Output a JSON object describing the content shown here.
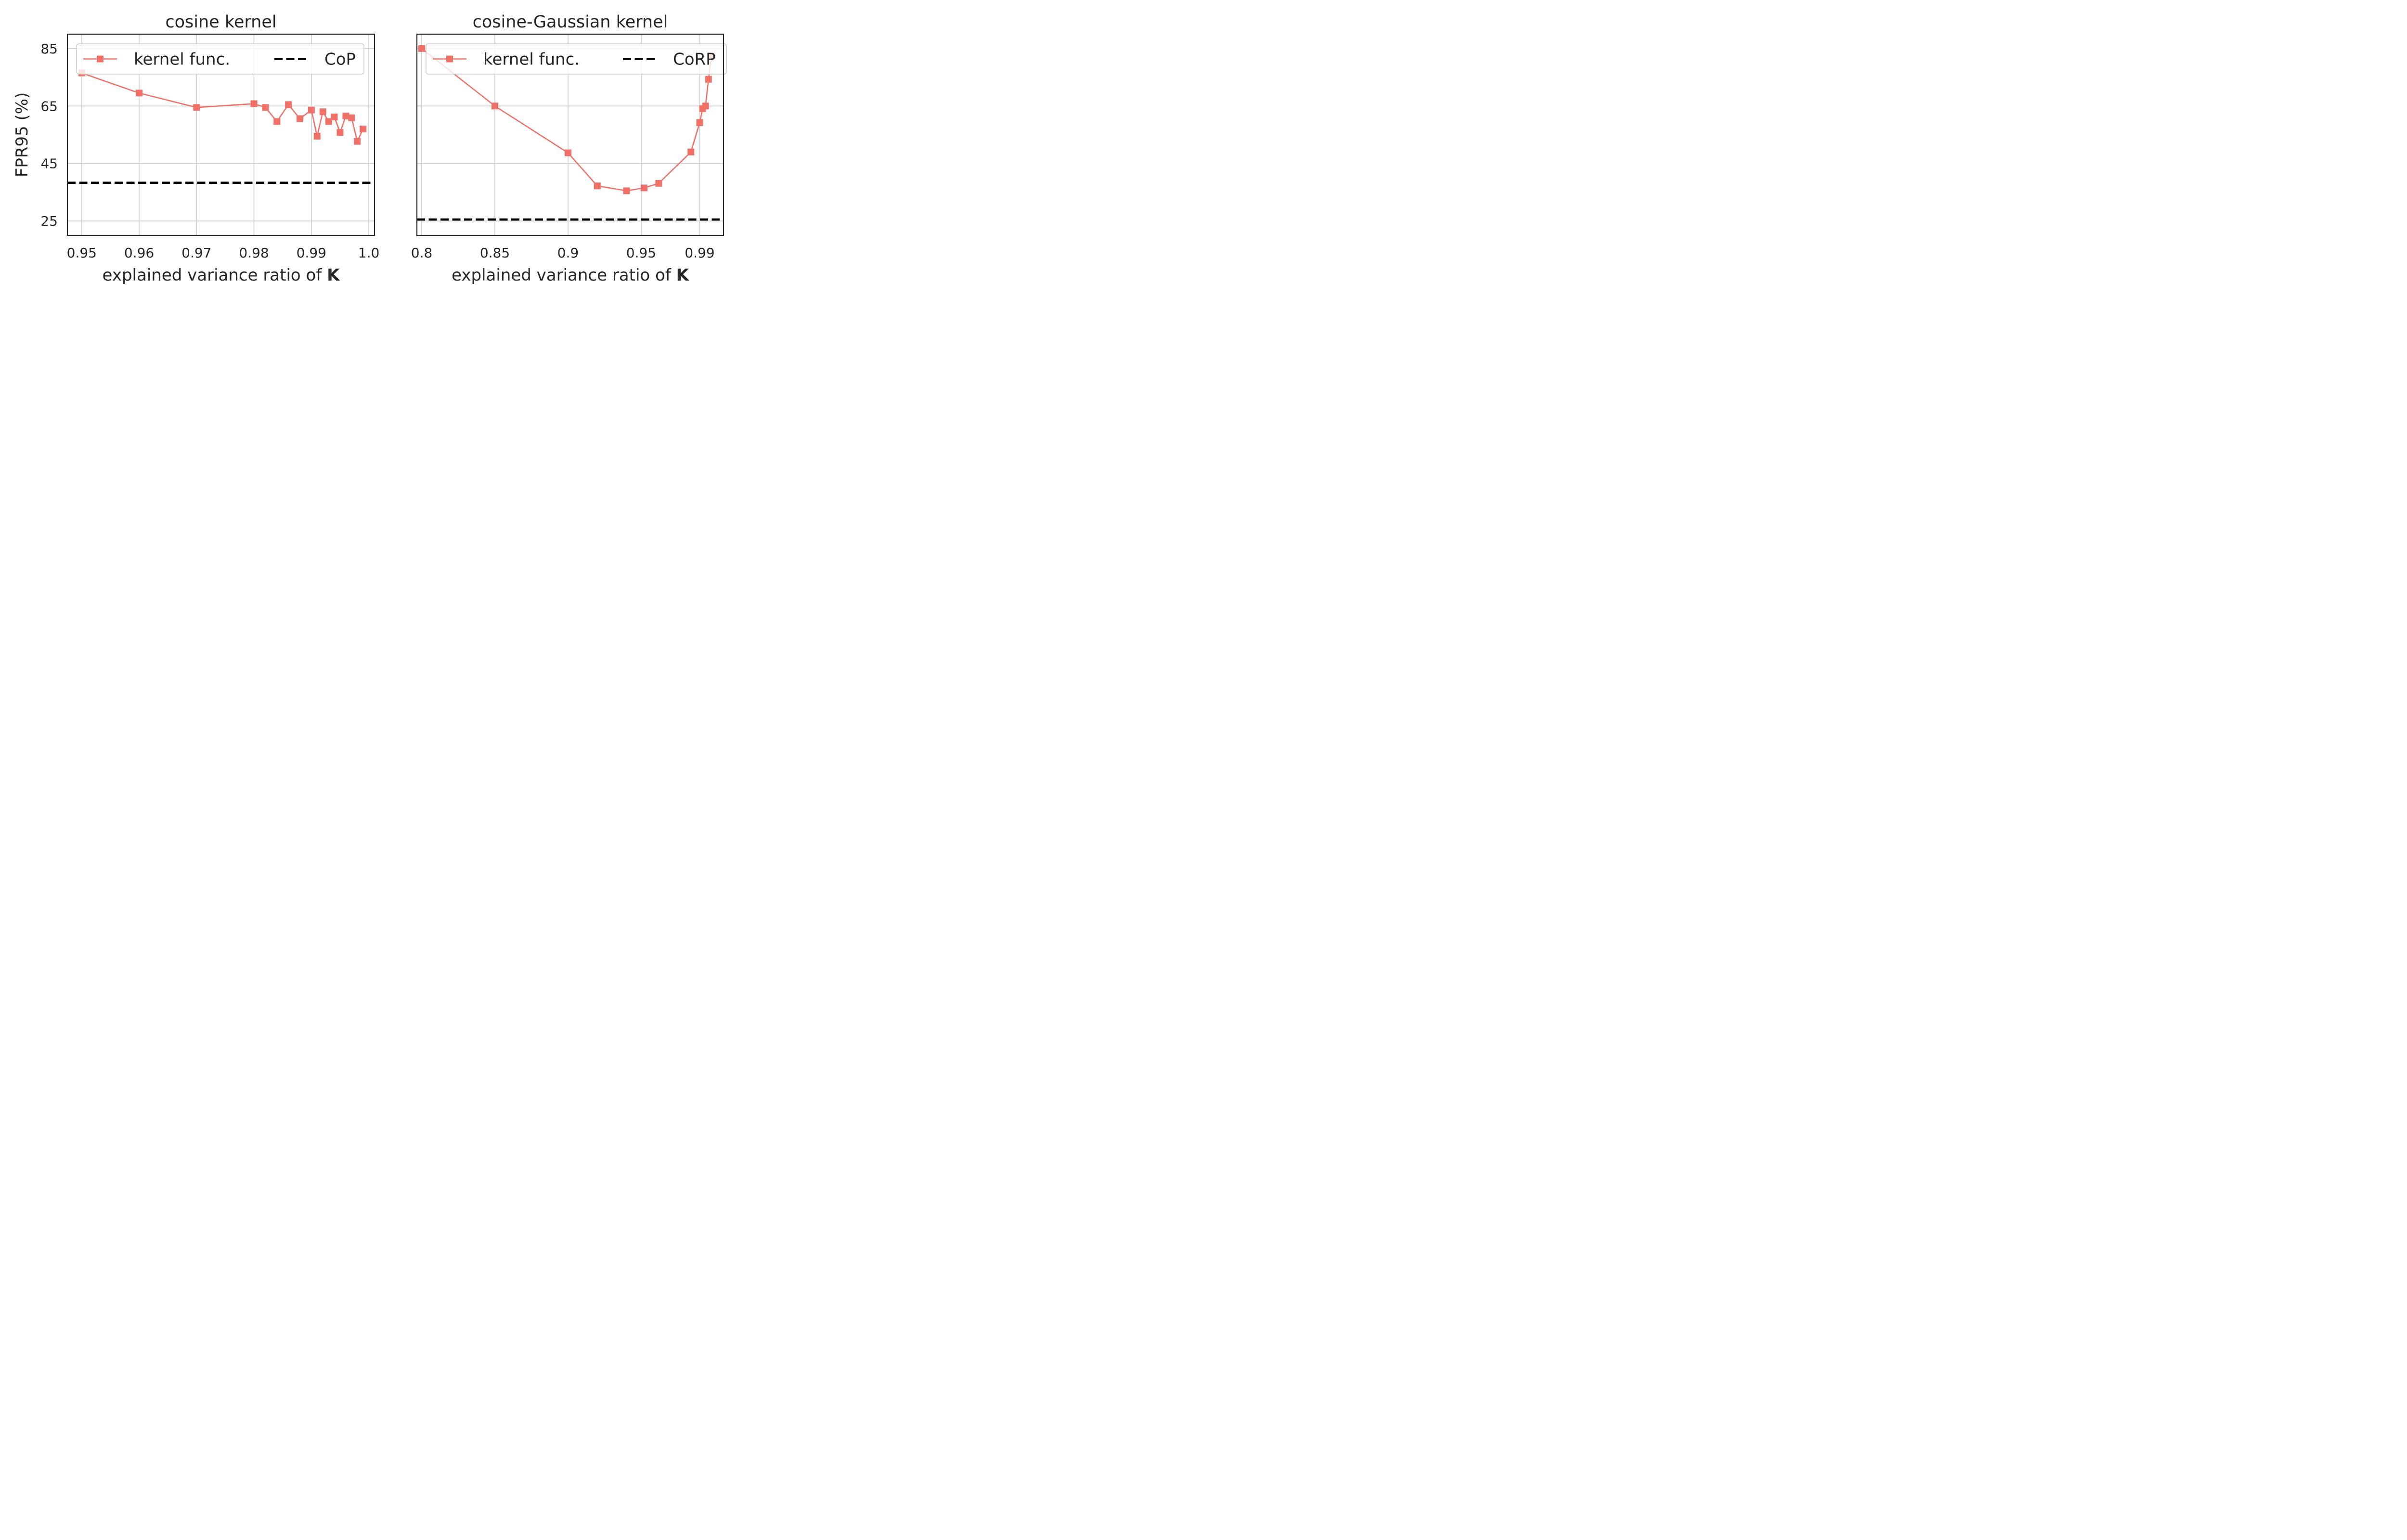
{
  "chart_data": [
    {
      "type": "line",
      "title": "cosine kernel",
      "xlabel": "explained variance ratio of",
      "xlabel_bold": "K",
      "ylabel": "FPR95 (%)",
      "xlim": [
        0.9475,
        1.001
      ],
      "ylim": [
        20,
        90
      ],
      "xticks": [
        0.95,
        0.96,
        0.97,
        0.98,
        0.99,
        1.0
      ],
      "xtick_labels": [
        "0.95",
        "0.96",
        "0.97",
        "0.98",
        "0.99",
        "1.0"
      ],
      "yticks": [
        25,
        45,
        65,
        85
      ],
      "ytick_labels": [
        "25",
        "45",
        "65",
        "85"
      ],
      "grid": true,
      "legend_position": "top",
      "series": [
        {
          "name": "kernel func.",
          "color": "#f07167",
          "marker": "square",
          "x": [
            0.95,
            0.96,
            0.97,
            0.98,
            0.982,
            0.984,
            0.986,
            0.988,
            0.99,
            0.991,
            0.992,
            0.993,
            0.994,
            0.995,
            0.996,
            0.997,
            0.998,
            0.999
          ],
          "y": [
            76.5,
            69.5,
            64.5,
            65.8,
            64.5,
            59.6,
            65.5,
            60.6,
            63.6,
            54.5,
            63.0,
            59.6,
            61.2,
            55.8,
            61.5,
            60.9,
            52.7,
            57.0
          ]
        },
        {
          "name": "CoP",
          "color": "#000000",
          "style": "dashed",
          "y_constant": 38.3
        }
      ]
    },
    {
      "type": "line",
      "title": "cosine-Gaussian kernel",
      "xlabel": "explained variance ratio of",
      "xlabel_bold": "K",
      "xlim": [
        0.7967,
        1.0063
      ],
      "ylim": [
        20,
        90
      ],
      "xticks": [
        0.8,
        0.85,
        0.9,
        0.95,
        0.99
      ],
      "xtick_labels": [
        "0.8",
        "0.85",
        "0.9",
        "0.95",
        "0.99"
      ],
      "grid": true,
      "legend_position": "top",
      "series": [
        {
          "name": "kernel func.",
          "color": "#f07167",
          "marker": "square",
          "x": [
            0.8,
            0.85,
            0.9,
            0.92,
            0.94,
            0.952,
            0.962,
            0.984,
            0.99,
            0.992,
            0.994,
            0.996,
            0.998
          ],
          "y": [
            85.0,
            65.0,
            48.7,
            37.2,
            35.5,
            36.5,
            38.1,
            49.0,
            59.2,
            64.1,
            65.0,
            74.3,
            82.5
          ]
        },
        {
          "name": "CoRP",
          "color": "#000000",
          "style": "dashed",
          "y_constant": 25.5
        }
      ]
    }
  ]
}
